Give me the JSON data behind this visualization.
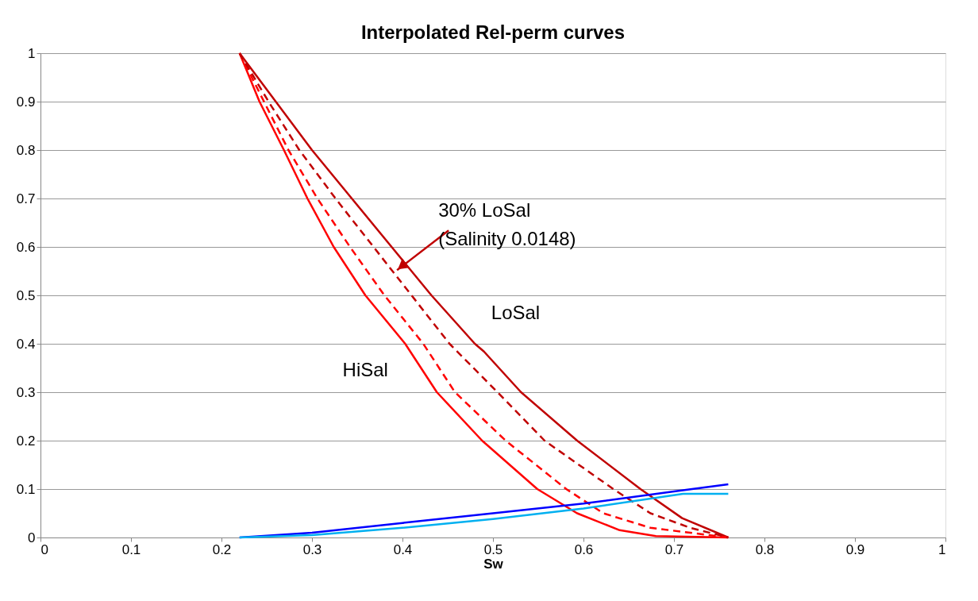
{
  "chart_data": {
    "type": "line",
    "title": "Interpolated Rel-perm curves",
    "xlabel": "Sw",
    "xlim": [
      0,
      1
    ],
    "xticks": [
      0,
      0.1,
      0.2,
      0.3,
      0.4,
      0.5,
      0.6,
      0.7,
      0.8,
      0.9,
      1
    ],
    "ylim": [
      0,
      1
    ],
    "yticks": [
      0,
      0.1,
      0.2,
      0.3,
      0.4,
      0.5,
      0.6,
      0.7,
      0.8,
      0.9,
      1
    ],
    "grid": "y",
    "legend": false,
    "marker": "none",
    "series": [
      {
        "name": "LoSal",
        "color": "#c00000",
        "line_style": "solid",
        "x": [
          0.22,
          0.26,
          0.3,
          0.344,
          0.388,
          0.432,
          0.48,
          0.49,
          0.531,
          0.593,
          0.663,
          0.709,
          0.76
        ],
        "values": [
          1,
          0.9,
          0.8,
          0.7,
          0.6,
          0.5,
          0.4,
          0.384,
          0.3,
          0.2,
          0.1,
          0.04,
          0
        ]
      },
      {
        "name": "HiSal",
        "color": "#ff0000",
        "line_style": "solid",
        "x": [
          0.22,
          0.242,
          0.269,
          0.295,
          0.324,
          0.359,
          0.403,
          0.438,
          0.488,
          0.549,
          0.593,
          0.64,
          0.68,
          0.76
        ],
        "values": [
          1,
          0.9,
          0.8,
          0.7,
          0.6,
          0.5,
          0.4,
          0.3,
          0.2,
          0.1,
          0.05,
          0.015,
          0.003,
          0
        ]
      },
      {
        "color": "#ff0000",
        "line_style": "dashed",
        "x": [
          0.22,
          0.247,
          0.274,
          0.306,
          0.342,
          0.38,
          0.423,
          0.458,
          0.514,
          0.581,
          0.622,
          0.674,
          0.76
        ],
        "values": [
          1,
          0.9,
          0.8,
          0.7,
          0.6,
          0.5,
          0.4,
          0.3,
          0.2,
          0.1,
          0.05,
          0.02,
          0
        ]
      },
      {
        "color": "#c00000",
        "line_style": "dashed",
        "x": [
          0.22,
          0.252,
          0.286,
          0.326,
          0.368,
          0.41,
          0.452,
          0.505,
          0.557,
          0.633,
          0.674,
          0.718,
          0.76
        ],
        "values": [
          1,
          0.9,
          0.8,
          0.7,
          0.6,
          0.5,
          0.4,
          0.3,
          0.2,
          0.1,
          0.05,
          0.02,
          0
        ]
      },
      {
        "color": "#0000ff",
        "line_style": "solid",
        "x": [
          0.22,
          0.3,
          0.4,
          0.5,
          0.6,
          0.7,
          0.76
        ],
        "values": [
          0,
          0.01,
          0.03,
          0.05,
          0.07,
          0.095,
          0.11
        ]
      },
      {
        "color": "#00b0f0",
        "line_style": "solid",
        "x": [
          0.22,
          0.3,
          0.4,
          0.5,
          0.6,
          0.71,
          0.76
        ],
        "values": [
          0,
          0.005,
          0.02,
          0.038,
          0.06,
          0.09,
          0.09
        ]
      }
    ],
    "annotations": [
      {
        "text": "30% LoSal\n(Salinity 0.0148)",
        "x": 0.394,
        "y": 0.552
      }
    ]
  }
}
